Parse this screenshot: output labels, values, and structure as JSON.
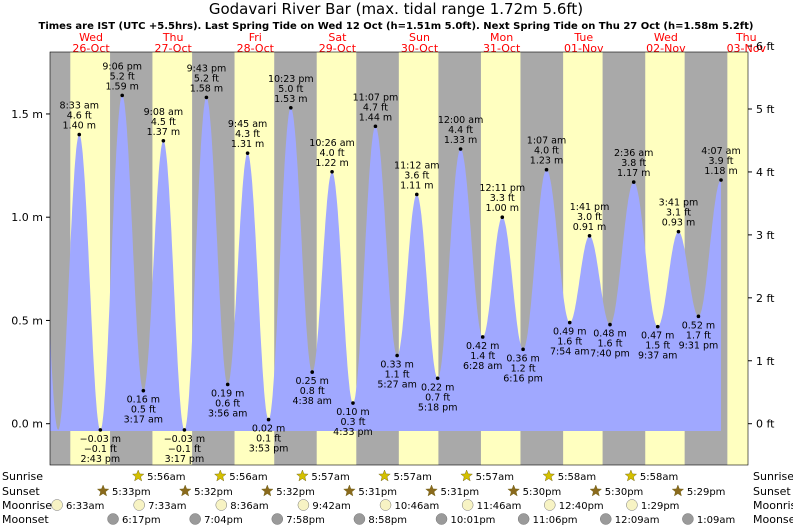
{
  "title": "Godavari River Bar (max. tidal range 1.72m 5.6ft)",
  "subtitle": "Times are IST (UTC +5.5hrs). Last Spring Tide on Wed 12 Oct (h=1.51m 5.0ft). Next Spring Tide on Thu 27 Oct (h=1.58m 5.2ft)",
  "colors": {
    "day": "#ffffc0",
    "night": "#a9a9a9",
    "tide": "#a0a8ff",
    "date": "#ff0000"
  },
  "days": [
    {
      "dow": "Wed",
      "date": "26-Oct"
    },
    {
      "dow": "Thu",
      "date": "27-Oct"
    },
    {
      "dow": "Fri",
      "date": "28-Oct"
    },
    {
      "dow": "Sat",
      "date": "29-Oct"
    },
    {
      "dow": "Sun",
      "date": "30-Oct"
    },
    {
      "dow": "Mon",
      "date": "31-Oct"
    },
    {
      "dow": "Tue",
      "date": "01-Nov"
    },
    {
      "dow": "Wed",
      "date": "02-Nov"
    },
    {
      "dow": "Thu",
      "date": "03-Nov"
    }
  ],
  "row_labels": {
    "sunrise": "Sunrise",
    "sunset": "Sunset",
    "moonrise": "Moonrise",
    "moonset": "Moonset"
  },
  "sunrise": [
    "5:56am",
    "5:56am",
    "5:57am",
    "5:57am",
    "5:57am",
    "5:58am",
    "5:58am"
  ],
  "sunset": [
    "5:33pm",
    "5:32pm",
    "5:32pm",
    "5:31pm",
    "5:31pm",
    "5:30pm",
    "5:30pm",
    "5:29pm"
  ],
  "moonrise": [
    "6:33am",
    "7:33am",
    "8:36am",
    "9:42am",
    "10:46am",
    "11:46am",
    "12:40pm",
    "1:29pm"
  ],
  "moonset": [
    "6:17pm",
    "7:04pm",
    "7:58pm",
    "8:58pm",
    "10:01pm",
    "11:06pm",
    "12:09am",
    "1:09am"
  ],
  "chart_data": {
    "type": "area",
    "x_unit": "time (IST)",
    "ylabel_left": "m",
    "ylabel_right": "ft",
    "ylim_m": [
      -0.2,
      1.8
    ],
    "ylim_ft": [
      -0.656,
      5.906
    ],
    "yticks_m": [
      "0.0 m",
      "0.5 m",
      "1.0 m",
      "1.5 m"
    ],
    "yticks_ft": [
      "0 ft",
      "1 ft",
      "2 ft",
      "3 ft",
      "4 ft",
      "5 ft",
      "6 ft"
    ],
    "tides": [
      {
        "time": "8:33 am",
        "m": "1.40 m",
        "ft": "4.6 ft",
        "h": 1.4,
        "t": "2022-10-26T08:33",
        "high": true
      },
      {
        "time": "2:43 pm",
        "m": "−0.03 m",
        "ft": "−0.1 ft",
        "h": -0.03,
        "t": "2022-10-26T14:43",
        "high": false
      },
      {
        "time": "9:06 pm",
        "m": "1.59 m",
        "ft": "5.2 ft",
        "h": 1.59,
        "t": "2022-10-26T21:06",
        "high": true
      },
      {
        "time": "3:17 am",
        "m": "0.16 m",
        "ft": "0.5 ft",
        "h": 0.16,
        "t": "2022-10-27T03:17",
        "high": false
      },
      {
        "time": "9:08 am",
        "m": "1.37 m",
        "ft": "4.5 ft",
        "h": 1.37,
        "t": "2022-10-27T09:08",
        "high": true
      },
      {
        "time": "3:17 pm",
        "m": "−0.03 m",
        "ft": "−0.1 ft",
        "h": -0.03,
        "t": "2022-10-27T15:17",
        "high": false
      },
      {
        "time": "9:43 pm",
        "m": "1.58 m",
        "ft": "5.2 ft",
        "h": 1.58,
        "t": "2022-10-27T21:43",
        "high": true
      },
      {
        "time": "3:56 am",
        "m": "0.19 m",
        "ft": "0.6 ft",
        "h": 0.19,
        "t": "2022-10-28T03:56",
        "high": false
      },
      {
        "time": "9:45 am",
        "m": "1.31 m",
        "ft": "4.3 ft",
        "h": 1.31,
        "t": "2022-10-28T09:45",
        "high": true
      },
      {
        "time": "3:53 pm",
        "m": "0.02 m",
        "ft": "0.1 ft",
        "h": 0.02,
        "t": "2022-10-28T15:53",
        "high": false
      },
      {
        "time": "10:23 pm",
        "m": "1.53 m",
        "ft": "5.0 ft",
        "h": 1.53,
        "t": "2022-10-28T22:23",
        "high": true
      },
      {
        "time": "4:38 am",
        "m": "0.25 m",
        "ft": "0.8 ft",
        "h": 0.25,
        "t": "2022-10-29T04:38",
        "high": false
      },
      {
        "time": "10:26 am",
        "m": "1.22 m",
        "ft": "4.0 ft",
        "h": 1.22,
        "t": "2022-10-29T10:26",
        "high": true
      },
      {
        "time": "4:33 pm",
        "m": "0.10 m",
        "ft": "0.3 ft",
        "h": 0.1,
        "t": "2022-10-29T16:33",
        "high": false
      },
      {
        "time": "11:07 pm",
        "m": "1.44 m",
        "ft": "4.7 ft",
        "h": 1.44,
        "t": "2022-10-29T23:07",
        "high": true
      },
      {
        "time": "5:27 am",
        "m": "0.33 m",
        "ft": "1.1 ft",
        "h": 0.33,
        "t": "2022-10-30T05:27",
        "high": false
      },
      {
        "time": "11:12 am",
        "m": "1.11 m",
        "ft": "3.6 ft",
        "h": 1.11,
        "t": "2022-10-30T11:12",
        "high": true
      },
      {
        "time": "5:18 pm",
        "m": "0.22 m",
        "ft": "0.7 ft",
        "h": 0.22,
        "t": "2022-10-30T17:18",
        "high": false
      },
      {
        "time": "12:00 am",
        "m": "1.33 m",
        "ft": "4.4 ft",
        "h": 1.33,
        "t": "2022-10-31T00:00",
        "high": true
      },
      {
        "time": "6:28 am",
        "m": "0.42 m",
        "ft": "1.4 ft",
        "h": 0.42,
        "t": "2022-10-31T06:28",
        "high": false
      },
      {
        "time": "12:11 pm",
        "m": "1.00 m",
        "ft": "3.3 ft",
        "h": 1.0,
        "t": "2022-10-31T12:11",
        "high": true
      },
      {
        "time": "6:16 pm",
        "m": "0.36 m",
        "ft": "1.2 ft",
        "h": 0.36,
        "t": "2022-10-31T18:16",
        "high": false
      },
      {
        "time": "1:07 am",
        "m": "1.23 m",
        "ft": "4.0 ft",
        "h": 1.23,
        "t": "2022-11-01T01:07",
        "high": true
      },
      {
        "time": "7:54 am",
        "m": "0.49 m",
        "ft": "1.6 ft",
        "h": 0.49,
        "t": "2022-11-01T07:54",
        "high": false
      },
      {
        "time": "1:41 pm",
        "m": "0.91 m",
        "ft": "3.0 ft",
        "h": 0.91,
        "t": "2022-11-01T13:41",
        "high": true
      },
      {
        "time": "7:40 pm",
        "m": "0.48 m",
        "ft": "1.6 ft",
        "h": 0.48,
        "t": "2022-11-01T19:40",
        "high": false
      },
      {
        "time": "2:36 am",
        "m": "1.17 m",
        "ft": "3.8 ft",
        "h": 1.17,
        "t": "2022-11-02T02:36",
        "high": true
      },
      {
        "time": "9:37 am",
        "m": "0.47 m",
        "ft": "1.5 ft",
        "h": 0.47,
        "t": "2022-11-02T09:37",
        "high": false
      },
      {
        "time": "3:41 pm",
        "m": "0.93 m",
        "ft": "3.1 ft",
        "h": 0.93,
        "t": "2022-11-02T15:41",
        "high": true
      },
      {
        "time": "9:31 pm",
        "m": "0.52 m",
        "ft": "1.7 ft",
        "h": 0.52,
        "t": "2022-11-02T21:31",
        "high": false
      },
      {
        "time": "4:07 am",
        "m": "1.18 m",
        "ft": "3.9 ft",
        "h": 1.18,
        "t": "2022-11-03T04:07",
        "high": true
      }
    ]
  }
}
